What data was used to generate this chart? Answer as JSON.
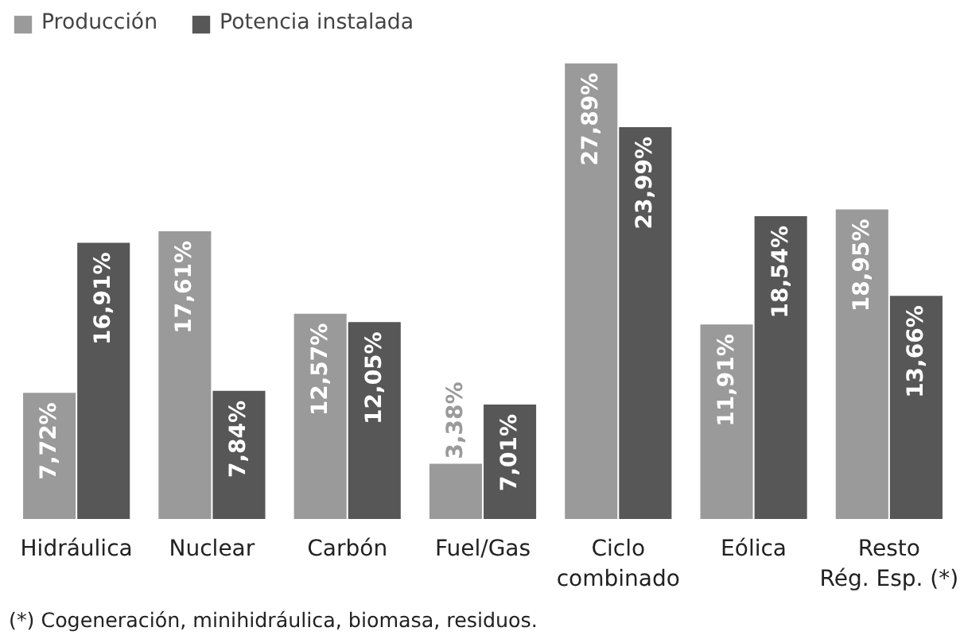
{
  "chart_data": {
    "type": "bar",
    "categories": [
      "Hidráulica",
      "Nuclear",
      "Carbón",
      "Fuel/Gas",
      "Ciclo\ncombinado",
      "Eólica",
      "Resto\nRég. Esp. (*)"
    ],
    "series": [
      {
        "name": "Producción",
        "color": "#9a9a9a",
        "values": [
          7.72,
          17.61,
          12.57,
          3.38,
          27.89,
          11.91,
          18.95
        ],
        "value_labels": [
          "7,72%",
          "17,61%",
          "12,57%",
          "3,38%",
          "27,89%",
          "11,91%",
          "18,95%"
        ]
      },
      {
        "name": "Potencia instalada",
        "color": "#575757",
        "values": [
          16.91,
          7.84,
          12.05,
          7.01,
          23.99,
          18.54,
          13.66
        ],
        "value_labels": [
          "16,91%",
          "7,84%",
          "12,05%",
          "7,01%",
          "23,99%",
          "18,54%",
          "13,66%"
        ]
      }
    ],
    "legend": "top left",
    "annotations": [
      "(*) Cogeneración, minihidráulica, biomasa, residuos."
    ]
  }
}
